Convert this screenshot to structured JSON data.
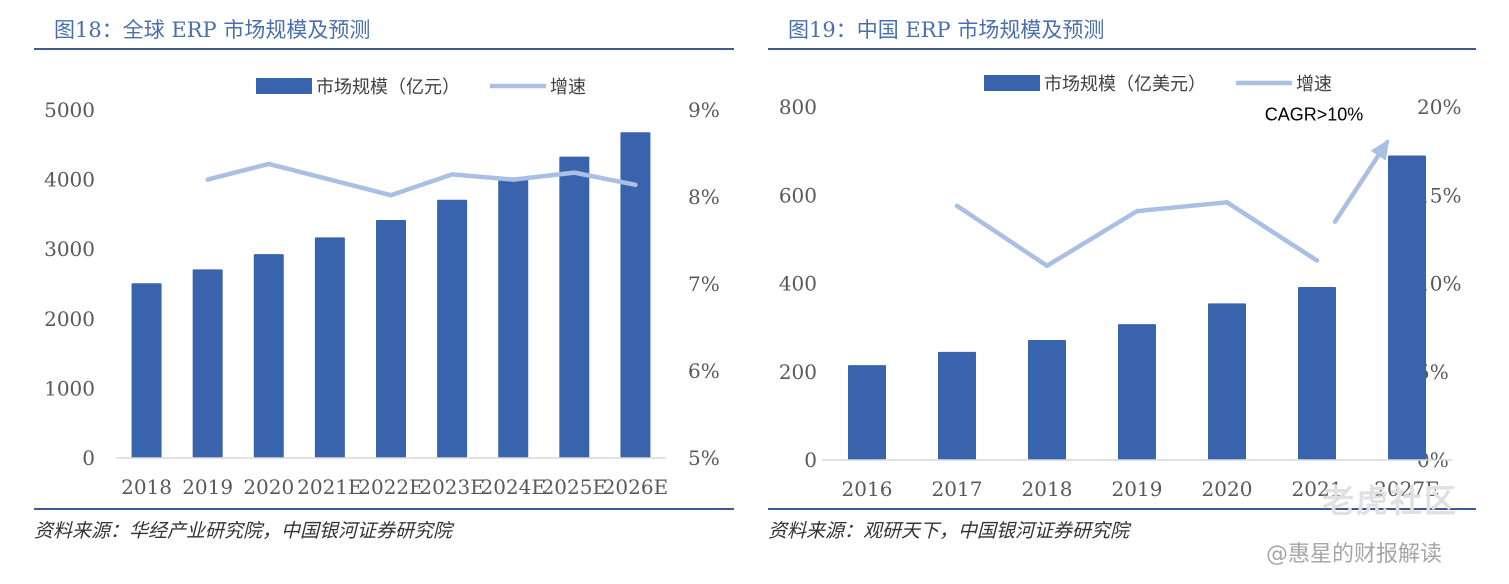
{
  "colors": {
    "bar": "#3a63ae",
    "line": "#a9bfe3",
    "rule": "#3c5a96",
    "title": "#4a6fae"
  },
  "watermark": {
    "brand": "老虎社区",
    "account": "@惠星的财报解读"
  },
  "chart_data": [
    {
      "type": "bar",
      "title": "图18：全球 ERP 市场规模及预测",
      "source": "资料来源：华经产业研究院，中国银河证券研究院",
      "categories": [
        "2018",
        "2019",
        "2020",
        "2021E",
        "2022E",
        "2023E",
        "2024E",
        "2025E",
        "2026E"
      ],
      "series": [
        {
          "name": "市场规模（亿元）",
          "type": "bar",
          "axis": "left",
          "values": [
            2510,
            2710,
            2930,
            3170,
            3420,
            3710,
            4010,
            4330,
            4680
          ]
        },
        {
          "name": "增速",
          "type": "line",
          "axis": "right",
          "values": [
            null,
            8.2,
            8.38,
            8.2,
            8.02,
            8.26,
            8.2,
            8.28,
            8.14
          ]
        }
      ],
      "left_axis": {
        "min": 0,
        "max": 5000,
        "ticks": [
          "0",
          "1000",
          "2000",
          "3000",
          "4000",
          "5000"
        ]
      },
      "right_axis": {
        "min": 5,
        "max": 9,
        "ticks": [
          "5%",
          "6%",
          "7%",
          "8%",
          "9%"
        ]
      },
      "legend_position": "top-center",
      "grid": false
    },
    {
      "type": "bar",
      "title": "图19：中国 ERP 市场规模及预测",
      "source": "资料来源：观研天下，中国银河证券研究院",
      "categories": [
        "2016",
        "2017",
        "2018",
        "2019",
        "2020",
        "2021",
        "2027E"
      ],
      "series": [
        {
          "name": "市场规模（亿美元）",
          "type": "bar",
          "axis": "left",
          "values": [
            215,
            245,
            272,
            308,
            355,
            392,
            690
          ]
        },
        {
          "name": "增速",
          "type": "line",
          "axis": "right",
          "values": [
            null,
            14.4,
            11.0,
            14.1,
            14.6,
            11.3,
            null
          ]
        }
      ],
      "left_axis": {
        "min": 0,
        "max": 800,
        "ticks": [
          "0",
          "200",
          "400",
          "600",
          "800"
        ]
      },
      "right_axis": {
        "min": 0,
        "max": 20,
        "ticks": [
          "0%",
          "5%",
          "10%",
          "15%",
          "20%"
        ]
      },
      "annotations": [
        {
          "text": "CAGR>10%",
          "type": "arrow",
          "from": [
            "2021",
            13.5
          ],
          "to": [
            "2027E",
            18.0
          ]
        }
      ],
      "legend_position": "top-center",
      "grid": false
    }
  ]
}
